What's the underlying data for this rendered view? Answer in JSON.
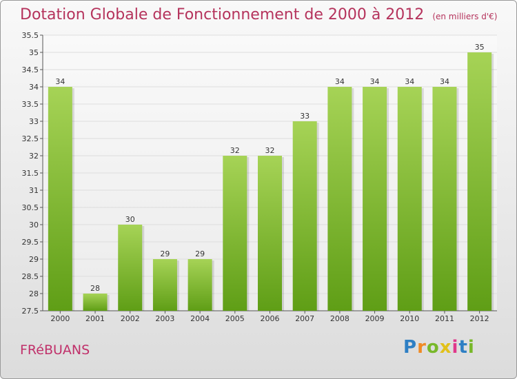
{
  "title": "Dotation Globale de Fonctionnement de 2000 à 2012",
  "subtitle": "(en milliers d'€)",
  "commune": "FRéBUANS",
  "logo": {
    "p": "P",
    "r": "r",
    "o": "o",
    "x": "x",
    "i1": "i",
    "t": "t",
    "i2": "i"
  },
  "colors": {
    "bar_light": "#a6d356",
    "bar_dark": "#5f9e16",
    "title": "#b5335c",
    "grid": "#dddddd"
  },
  "chart_data": {
    "type": "bar",
    "title": "Dotation Globale de Fonctionnement de 2000 à 2012",
    "subtitle": "(en milliers d'€)",
    "categories": [
      "2000",
      "2001",
      "2002",
      "2003",
      "2004",
      "2005",
      "2006",
      "2007",
      "2008",
      "2009",
      "2010",
      "2011",
      "2012"
    ],
    "values": [
      34,
      28,
      30,
      29,
      29,
      32,
      32,
      33,
      34,
      34,
      34,
      34,
      35
    ],
    "data_labels": [
      "34",
      "28",
      "30",
      "29",
      "29",
      "32",
      "32",
      "33",
      "34",
      "34",
      "34",
      "34",
      "35"
    ],
    "ylim": [
      27.5,
      35.5
    ],
    "yticks": [
      27.5,
      28,
      28.5,
      29,
      29.5,
      30,
      30.5,
      31,
      31.5,
      32,
      32.5,
      33,
      33.5,
      34,
      34.5,
      35,
      35.5
    ],
    "ytick_labels": [
      "27.5",
      "28",
      "28.5",
      "29",
      "29.5",
      "30",
      "30.5",
      "31",
      "31.5",
      "32",
      "32.5",
      "33",
      "33.5",
      "34",
      "34.5",
      "35",
      "35.5"
    ],
    "grid": true
  }
}
